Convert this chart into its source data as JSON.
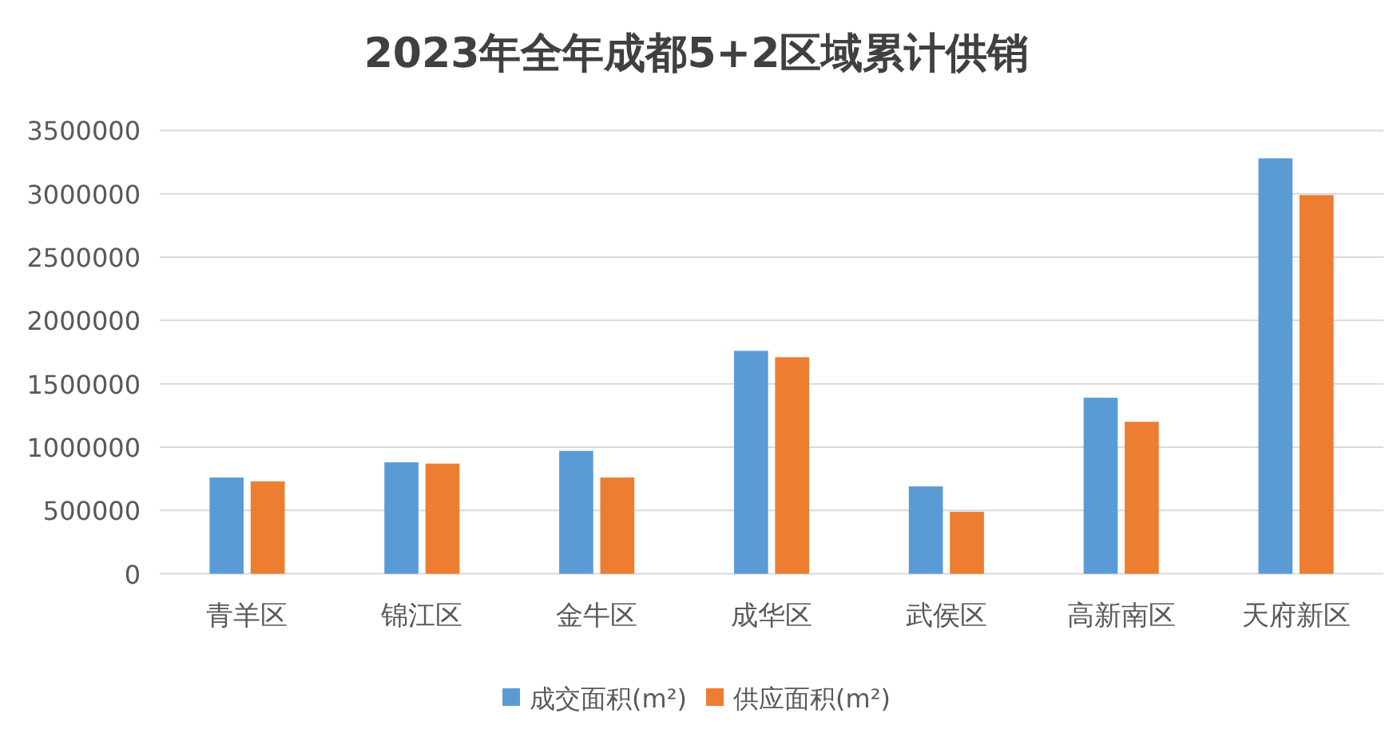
{
  "chart_data": {
    "type": "bar",
    "title": "2023年全年成都5+2区域累计供销",
    "categories": [
      "青羊区",
      "锦江区",
      "金牛区",
      "成华区",
      "武侯区",
      "高新南区",
      "天府新区"
    ],
    "series": [
      {
        "name": "成交面积(m²)",
        "color": "#5b9bd5",
        "values": [
          760000,
          880000,
          970000,
          1760000,
          690000,
          1390000,
          3280000
        ]
      },
      {
        "name": "供应面积(m²)",
        "color": "#ed7d31",
        "values": [
          730000,
          870000,
          760000,
          1710000,
          490000,
          1200000,
          2990000
        ]
      }
    ],
    "ylim": [
      0,
      3500000
    ],
    "yticks": [
      0,
      500000,
      1000000,
      1500000,
      2000000,
      2500000,
      3000000,
      3500000
    ],
    "grid": "y",
    "legend": "bottom"
  }
}
